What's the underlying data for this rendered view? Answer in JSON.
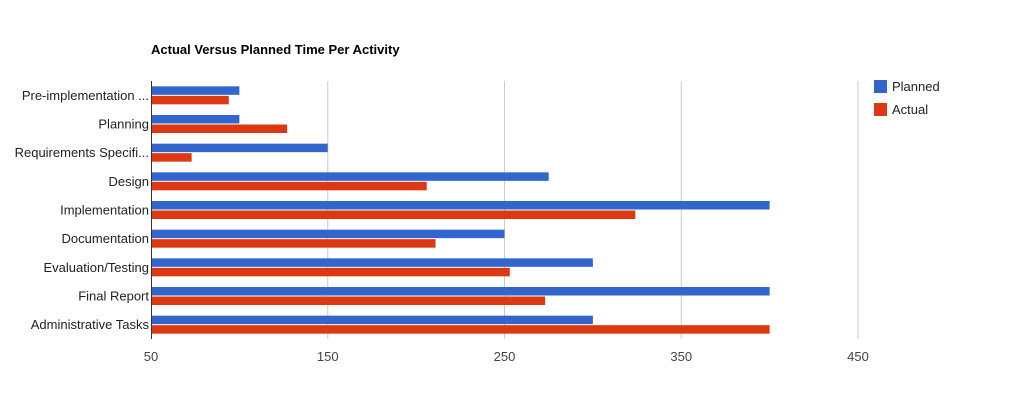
{
  "chart_data": {
    "type": "bar",
    "orientation": "horizontal",
    "title": "Actual Versus Planned Time Per Activity",
    "categories": [
      "Pre-implementation ...",
      "Planning",
      "Requirements Specifi...",
      "Design",
      "Implementation",
      "Documentation",
      "Evaluation/Testing",
      "Final Report",
      "Administrative Tasks"
    ],
    "series": [
      {
        "name": "Planned",
        "color": "#3366cc",
        "values": [
          100,
          100,
          150,
          275,
          400,
          250,
          300,
          400,
          300
        ]
      },
      {
        "name": "Actual",
        "color": "#dc3912",
        "values": [
          94,
          127,
          73,
          206,
          324,
          211,
          253,
          273,
          400
        ]
      }
    ],
    "xlim": [
      50,
      450
    ],
    "xticks": [
      "50",
      "150",
      "250",
      "350",
      "450"
    ],
    "grid": true,
    "legend": "right"
  }
}
